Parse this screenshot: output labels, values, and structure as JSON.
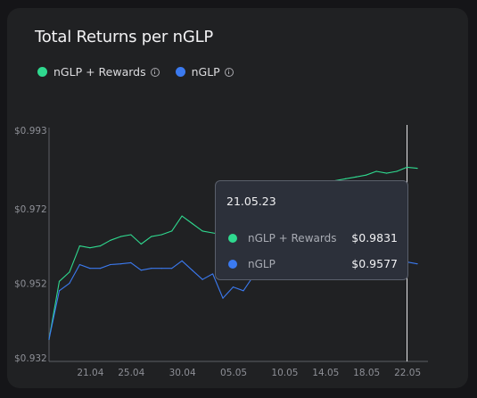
{
  "title": "Total Returns per nGLP",
  "legend": [
    {
      "label": "nGLP + Rewards",
      "color": "#2fd98f"
    },
    {
      "label": "nGLP",
      "color": "#3b7af0"
    }
  ],
  "tooltip": {
    "date": "21.05.23",
    "rows": [
      {
        "label": "nGLP + Rewards",
        "value": "$0.9831",
        "color": "#2fd98f"
      },
      {
        "label": "nGLP",
        "value": "$0.9577",
        "color": "#3b7af0"
      }
    ]
  },
  "chart_data": {
    "type": "line",
    "title": "Total Returns per nGLP",
    "xlabel": "",
    "ylabel": "",
    "ylim": [
      0.932,
      0.993
    ],
    "yticks": [
      "$0.993",
      "$0.972",
      "$0.952",
      "$0.932"
    ],
    "ytick_values": [
      0.993,
      0.972,
      0.952,
      0.932
    ],
    "xticks": [
      "21.04",
      "25.04",
      "30.04",
      "05.05",
      "10.05",
      "14.05",
      "18.05",
      "22.05"
    ],
    "xtick_values": [
      21.04,
      25.04,
      30.04,
      35.05,
      40.05,
      44.05,
      48.05,
      52.05
    ],
    "grid": false,
    "legend_position": "top-left",
    "x": [
      17,
      18,
      19,
      20,
      21,
      22,
      23,
      24,
      25,
      26,
      27,
      28,
      29,
      30,
      31,
      32,
      33,
      34,
      35,
      36,
      37,
      38,
      39,
      40,
      41,
      42,
      43,
      44,
      45,
      46,
      47,
      48,
      49,
      50,
      51,
      52,
      53
    ],
    "series": [
      {
        "name": "nGLP + Rewards",
        "color": "#2fd98f",
        "values": [
          0.937,
          0.9525,
          0.955,
          0.962,
          0.9615,
          0.962,
          0.9635,
          0.9645,
          0.965,
          0.9625,
          0.9645,
          0.965,
          0.966,
          0.97,
          0.968,
          0.966,
          0.9655,
          0.965,
          0.9665,
          0.9675,
          0.9685,
          0.969,
          0.97,
          0.973,
          0.976,
          0.977,
          0.978,
          0.979,
          0.9795,
          0.98,
          0.9805,
          0.981,
          0.982,
          0.9815,
          0.982,
          0.9831,
          0.9828
        ]
      },
      {
        "name": "nGLP",
        "color": "#3b7af0",
        "values": [
          0.937,
          0.95,
          0.952,
          0.957,
          0.956,
          0.956,
          0.957,
          0.9572,
          0.9575,
          0.9555,
          0.956,
          0.956,
          0.956,
          0.958,
          0.9555,
          0.953,
          0.9545,
          0.948,
          0.951,
          0.95,
          0.954,
          0.9545,
          0.955,
          0.956,
          0.956,
          0.9565,
          0.9568,
          0.957,
          0.9572,
          0.957,
          0.9573,
          0.9572,
          0.9575,
          0.9573,
          0.9574,
          0.9577,
          0.9572
        ]
      }
    ],
    "highlight_x": 52,
    "annotation": "21.05.23"
  }
}
